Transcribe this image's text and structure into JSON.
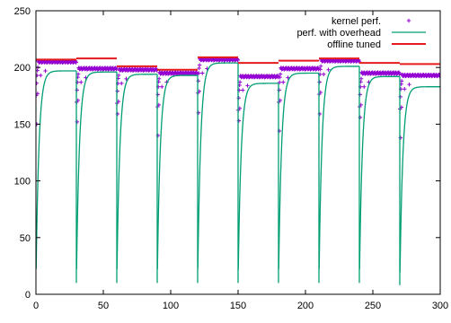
{
  "chart_data": {
    "type": "line",
    "title": "",
    "xlabel": "",
    "ylabel": "",
    "xlim": [
      0,
      300
    ],
    "ylim": [
      0,
      250
    ],
    "xticks": [
      0,
      50,
      100,
      150,
      200,
      250,
      300
    ],
    "yticks": [
      0,
      50,
      100,
      150,
      200,
      250
    ],
    "grid": false,
    "legend_position": "top-right",
    "series": [
      {
        "name": "kernel perf.",
        "style": "points-plus",
        "color": "#9400d3",
        "segments": [
          {
            "start": 0,
            "end": 30,
            "level": 205
          },
          {
            "start": 30,
            "end": 60,
            "level": 199
          },
          {
            "start": 60,
            "end": 90,
            "level": 198
          },
          {
            "start": 90,
            "end": 120,
            "level": 195
          },
          {
            "start": 120,
            "end": 150,
            "level": 207
          },
          {
            "start": 150,
            "end": 180,
            "level": 192
          },
          {
            "start": 180,
            "end": 210,
            "level": 199
          },
          {
            "start": 210,
            "end": 240,
            "level": 206
          },
          {
            "start": 240,
            "end": 270,
            "level": 195
          },
          {
            "start": 270,
            "end": 300,
            "level": 193
          }
        ]
      },
      {
        "name": "perf. with overhead",
        "style": "line",
        "color": "#009e73",
        "segments": [
          {
            "start": 0,
            "end": 30,
            "dip": 10,
            "plateau": 197
          },
          {
            "start": 30,
            "end": 60,
            "dip": 10,
            "plateau": 196
          },
          {
            "start": 60,
            "end": 90,
            "dip": 10,
            "plateau": 194
          },
          {
            "start": 90,
            "end": 120,
            "dip": 10,
            "plateau": 193
          },
          {
            "start": 120,
            "end": 150,
            "dip": 10,
            "plateau": 204
          },
          {
            "start": 150,
            "end": 180,
            "dip": 10,
            "plateau": 186
          },
          {
            "start": 180,
            "end": 210,
            "dip": 10,
            "plateau": 195
          },
          {
            "start": 210,
            "end": 240,
            "dip": 10,
            "plateau": 201
          },
          {
            "start": 240,
            "end": 270,
            "dip": 10,
            "plateau": 192
          },
          {
            "start": 270,
            "end": 300,
            "dip": 8,
            "plateau": 183
          }
        ]
      },
      {
        "name": "offline tuned",
        "style": "steps",
        "color": "#e41a1c",
        "segments": [
          {
            "start": 0,
            "end": 30,
            "level": 207
          },
          {
            "start": 30,
            "end": 60,
            "level": 208
          },
          {
            "start": 60,
            "end": 90,
            "level": 201
          },
          {
            "start": 90,
            "end": 120,
            "level": 198
          },
          {
            "start": 120,
            "end": 150,
            "level": 209
          },
          {
            "start": 150,
            "end": 180,
            "level": 204
          },
          {
            "start": 180,
            "end": 210,
            "level": 206
          },
          {
            "start": 210,
            "end": 240,
            "level": 208
          },
          {
            "start": 240,
            "end": 270,
            "level": 204
          },
          {
            "start": 270,
            "end": 300,
            "level": 203
          }
        ]
      }
    ]
  }
}
